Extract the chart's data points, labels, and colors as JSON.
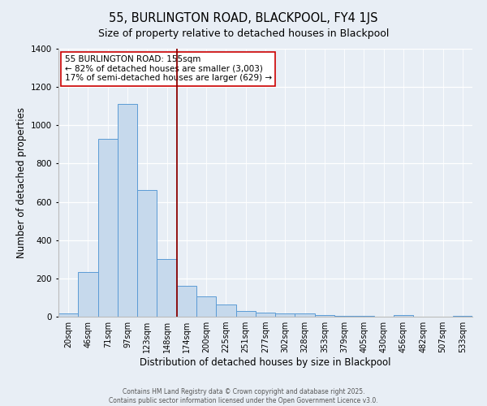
{
  "title": "55, BURLINGTON ROAD, BLACKPOOL, FY4 1JS",
  "subtitle": "Size of property relative to detached houses in Blackpool",
  "xlabel": "Distribution of detached houses by size in Blackpool",
  "ylabel": "Number of detached properties",
  "bar_labels": [
    "20sqm",
    "46sqm",
    "71sqm",
    "97sqm",
    "123sqm",
    "148sqm",
    "174sqm",
    "200sqm",
    "225sqm",
    "251sqm",
    "277sqm",
    "302sqm",
    "328sqm",
    "353sqm",
    "379sqm",
    "405sqm",
    "430sqm",
    "456sqm",
    "482sqm",
    "507sqm",
    "533sqm"
  ],
  "bar_values": [
    15,
    235,
    930,
    1110,
    660,
    300,
    160,
    105,
    65,
    30,
    20,
    15,
    15,
    10,
    5,
    5,
    0,
    10,
    0,
    0,
    5
  ],
  "bar_color": "#c6d9ec",
  "bar_edge_color": "#5b9bd5",
  "vline_x": 5.5,
  "vline_color": "#8b0000",
  "annotation_title": "55 BURLINGTON ROAD: 155sqm",
  "annotation_line1": "← 82% of detached houses are smaller (3,003)",
  "annotation_line2": "17% of semi-detached houses are larger (629) →",
  "annotation_box_facecolor": "white",
  "annotation_box_edgecolor": "#cc0000",
  "ylim": [
    0,
    1400
  ],
  "yticks": [
    0,
    200,
    400,
    600,
    800,
    1000,
    1200,
    1400
  ],
  "plot_bg_color": "#e8eef5",
  "fig_bg_color": "#e8eef5",
  "grid_color": "white",
  "footer1": "Contains HM Land Registry data © Crown copyright and database right 2025.",
  "footer2": "Contains public sector information licensed under the Open Government Licence v3.0.",
  "title_fontsize": 10.5,
  "subtitle_fontsize": 9,
  "tick_fontsize": 7,
  "ylabel_fontsize": 8.5,
  "xlabel_fontsize": 8.5,
  "annotation_fontsize": 7.5,
  "footer_fontsize": 5.5
}
